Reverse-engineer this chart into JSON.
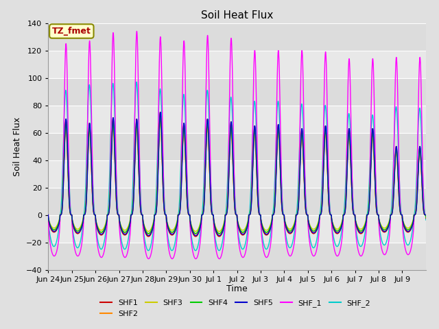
{
  "title": "Soil Heat Flux",
  "ylabel": "Soil Heat Flux",
  "xlabel": "Time",
  "ylim": [
    -40,
    140
  ],
  "annotation_text": "TZ_fmet",
  "annotation_bg": "#FFFFCC",
  "annotation_border": "#888800",
  "annotation_fg": "#AA0000",
  "series": [
    "SHF1",
    "SHF2",
    "SHF3",
    "SHF4",
    "SHF5",
    "SHF_1",
    "SHF_2"
  ],
  "colors": [
    "#CC0000",
    "#FF8800",
    "#CCCC00",
    "#00CC00",
    "#0000CC",
    "#FF00FF",
    "#00CCCC"
  ],
  "num_days": 16,
  "points_per_day": 288,
  "tick_labels": [
    "Jun 24",
    "Jun 25",
    "Jun 26",
    "Jun 27",
    "Jun 28",
    "Jun 29",
    "Jun 30",
    "Jul 1",
    "Jul 2",
    "Jul 3",
    "Jul 4",
    "Jul 5",
    "Jul 6",
    "Jul 7",
    "Jul 8",
    "Jul 9"
  ],
  "shf1_peaks": [
    70,
    67,
    71,
    70,
    75,
    67,
    70,
    68,
    65,
    66,
    63,
    65,
    63,
    63,
    50,
    50
  ],
  "shf1_troughs": [
    -12,
    -13,
    -14,
    -14,
    -15,
    -14,
    -15,
    -15,
    -14,
    -14,
    -13,
    -13,
    -13,
    -13,
    -12,
    -12
  ],
  "shfM_peaks": [
    125,
    127,
    133,
    134,
    130,
    127,
    131,
    129,
    120,
    120,
    120,
    119,
    114,
    114,
    115,
    115
  ],
  "shfM_troughs": [
    -30,
    -30,
    -31,
    -31,
    -32,
    -32,
    -32,
    -32,
    -31,
    -31,
    -30,
    -30,
    -30,
    -30,
    -29,
    -29
  ],
  "shfC_peaks": [
    91,
    95,
    96,
    97,
    92,
    88,
    91,
    86,
    83,
    83,
    81,
    80,
    74,
    73,
    79,
    78
  ],
  "shfC_troughs": [
    -23,
    -24,
    -25,
    -25,
    -26,
    -26,
    -26,
    -26,
    -25,
    -25,
    -24,
    -24,
    -23,
    -23,
    -22,
    -22
  ],
  "band_colors": [
    "#DCDCDC",
    "#E8E8E8"
  ],
  "yticks": [
    -40,
    -20,
    0,
    20,
    40,
    60,
    80,
    100,
    120,
    140
  ]
}
